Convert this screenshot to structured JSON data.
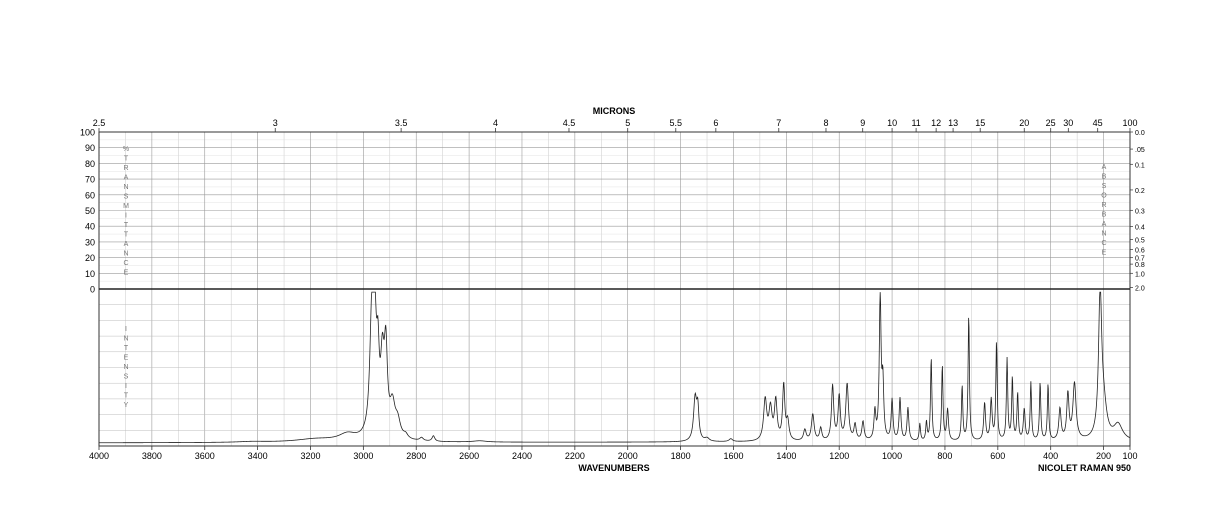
{
  "chart_data": {
    "type": "line",
    "top_axis_title": "MICRONS",
    "bottom_axis_title": "WAVENUMBERS",
    "instrument": "NICOLET RAMAN 950",
    "left_vertical_label": "%TRANSMITTANCE",
    "right_vertical_label": "ABSORBANCE",
    "intensity_label": "INTENSITY",
    "xlim": [
      4000,
      100
    ],
    "transmittance_ylim": [
      0,
      100
    ],
    "x_ticks": [
      "4000",
      "3800",
      "3600",
      "3400",
      "3200",
      "3000",
      "2800",
      "2600",
      "2400",
      "2200",
      "2000",
      "1800",
      "1600",
      "1400",
      "1200",
      "1000",
      "800",
      "600",
      "400",
      "200",
      "100"
    ],
    "micron_ticks": [
      {
        "label": "2.5",
        "um": 2.5
      },
      {
        "label": "3",
        "um": 3
      },
      {
        "label": "3.5",
        "um": 3.5
      },
      {
        "label": "4",
        "um": 4
      },
      {
        "label": "4.5",
        "um": 4.5
      },
      {
        "label": "5",
        "um": 5
      },
      {
        "label": "5.5",
        "um": 5.5
      },
      {
        "label": "6",
        "um": 6
      },
      {
        "label": "7",
        "um": 7
      },
      {
        "label": "8",
        "um": 8
      },
      {
        "label": "9",
        "um": 9
      },
      {
        "label": "10",
        "um": 10
      },
      {
        "label": "11",
        "um": 11
      },
      {
        "label": "12",
        "um": 12
      },
      {
        "label": "13",
        "um": 13
      },
      {
        "label": "15",
        "um": 15
      },
      {
        "label": "20",
        "um": 20
      },
      {
        "label": "25",
        "um": 25
      },
      {
        "label": "30",
        "um": 30
      },
      {
        "label": "45",
        "um": 45
      },
      {
        "label": "100",
        "um": 100
      }
    ],
    "transmittance_ticks": [
      "100",
      "90",
      "80",
      "70",
      "60",
      "50",
      "40",
      "30",
      "20",
      "10",
      "0"
    ],
    "absorbance_ticks": [
      {
        "label": "0.0",
        "a": 0.0
      },
      {
        "label": ".05",
        "a": 0.05
      },
      {
        "label": "0.1",
        "a": 0.1
      },
      {
        "label": "0.2",
        "a": 0.2
      },
      {
        "label": "0.3",
        "a": 0.3
      },
      {
        "label": "0.4",
        "a": 0.4
      },
      {
        "label": "0.5",
        "a": 0.5
      },
      {
        "label": "0.6",
        "a": 0.6
      },
      {
        "label": "0.7",
        "a": 0.7
      },
      {
        "label": "0.8",
        "a": 0.8
      },
      {
        "label": "1.0",
        "a": 1.0
      },
      {
        "label": "2.0",
        "a": 2.0
      }
    ],
    "raman_baseline": 0.02,
    "raman_bands": [
      {
        "x": 3420,
        "h": 0.005,
        "w": 60
      },
      {
        "x": 3180,
        "h": 0.02,
        "w": 90
      },
      {
        "x": 3060,
        "h": 0.045,
        "w": 40
      },
      {
        "x": 2968,
        "h": 0.74,
        "w": 9
      },
      {
        "x": 2957,
        "h": 0.62,
        "w": 7
      },
      {
        "x": 2945,
        "h": 0.42,
        "w": 6
      },
      {
        "x": 2928,
        "h": 0.44,
        "w": 8
      },
      {
        "x": 2915,
        "h": 0.52,
        "w": 7
      },
      {
        "x": 2890,
        "h": 0.2,
        "w": 12
      },
      {
        "x": 2870,
        "h": 0.1,
        "w": 12
      },
      {
        "x": 2840,
        "h": 0.025,
        "w": 10
      },
      {
        "x": 2780,
        "h": 0.02,
        "w": 8
      },
      {
        "x": 2735,
        "h": 0.035,
        "w": 6
      },
      {
        "x": 2560,
        "h": 0.008,
        "w": 30
      },
      {
        "x": 1745,
        "h": 0.27,
        "w": 7
      },
      {
        "x": 1735,
        "h": 0.19,
        "w": 5
      },
      {
        "x": 1700,
        "h": 0.02,
        "w": 10
      },
      {
        "x": 1610,
        "h": 0.018,
        "w": 8
      },
      {
        "x": 1480,
        "h": 0.26,
        "w": 7
      },
      {
        "x": 1460,
        "h": 0.2,
        "w": 7
      },
      {
        "x": 1440,
        "h": 0.25,
        "w": 6
      },
      {
        "x": 1410,
        "h": 0.35,
        "w": 5
      },
      {
        "x": 1395,
        "h": 0.12,
        "w": 6
      },
      {
        "x": 1330,
        "h": 0.07,
        "w": 6
      },
      {
        "x": 1300,
        "h": 0.17,
        "w": 6
      },
      {
        "x": 1270,
        "h": 0.08,
        "w": 5
      },
      {
        "x": 1225,
        "h": 0.35,
        "w": 5
      },
      {
        "x": 1200,
        "h": 0.28,
        "w": 5
      },
      {
        "x": 1170,
        "h": 0.36,
        "w": 6
      },
      {
        "x": 1140,
        "h": 0.1,
        "w": 5
      },
      {
        "x": 1110,
        "h": 0.12,
        "w": 5
      },
      {
        "x": 1065,
        "h": 0.18,
        "w": 4
      },
      {
        "x": 1045,
        "h": 0.92,
        "w": 4
      },
      {
        "x": 1035,
        "h": 0.35,
        "w": 4
      },
      {
        "x": 1000,
        "h": 0.26,
        "w": 4
      },
      {
        "x": 970,
        "h": 0.27,
        "w": 4
      },
      {
        "x": 940,
        "h": 0.21,
        "w": 4
      },
      {
        "x": 895,
        "h": 0.11,
        "w": 3
      },
      {
        "x": 870,
        "h": 0.12,
        "w": 3
      },
      {
        "x": 852,
        "h": 0.53,
        "w": 3
      },
      {
        "x": 810,
        "h": 0.48,
        "w": 3
      },
      {
        "x": 790,
        "h": 0.2,
        "w": 4
      },
      {
        "x": 735,
        "h": 0.35,
        "w": 3
      },
      {
        "x": 710,
        "h": 0.8,
        "w": 3
      },
      {
        "x": 650,
        "h": 0.24,
        "w": 4
      },
      {
        "x": 625,
        "h": 0.26,
        "w": 4
      },
      {
        "x": 605,
        "h": 0.63,
        "w": 3
      },
      {
        "x": 565,
        "h": 0.52,
        "w": 3
      },
      {
        "x": 545,
        "h": 0.4,
        "w": 3
      },
      {
        "x": 525,
        "h": 0.3,
        "w": 3
      },
      {
        "x": 500,
        "h": 0.2,
        "w": 4
      },
      {
        "x": 475,
        "h": 0.37,
        "w": 3
      },
      {
        "x": 440,
        "h": 0.37,
        "w": 3
      },
      {
        "x": 410,
        "h": 0.36,
        "w": 3
      },
      {
        "x": 365,
        "h": 0.2,
        "w": 5
      },
      {
        "x": 335,
        "h": 0.29,
        "w": 5
      },
      {
        "x": 310,
        "h": 0.36,
        "w": 7
      },
      {
        "x": 213,
        "h": 0.9,
        "w": 7
      },
      {
        "x": 200,
        "h": 0.2,
        "w": 14
      },
      {
        "x": 145,
        "h": 0.1,
        "w": 20
      }
    ]
  }
}
